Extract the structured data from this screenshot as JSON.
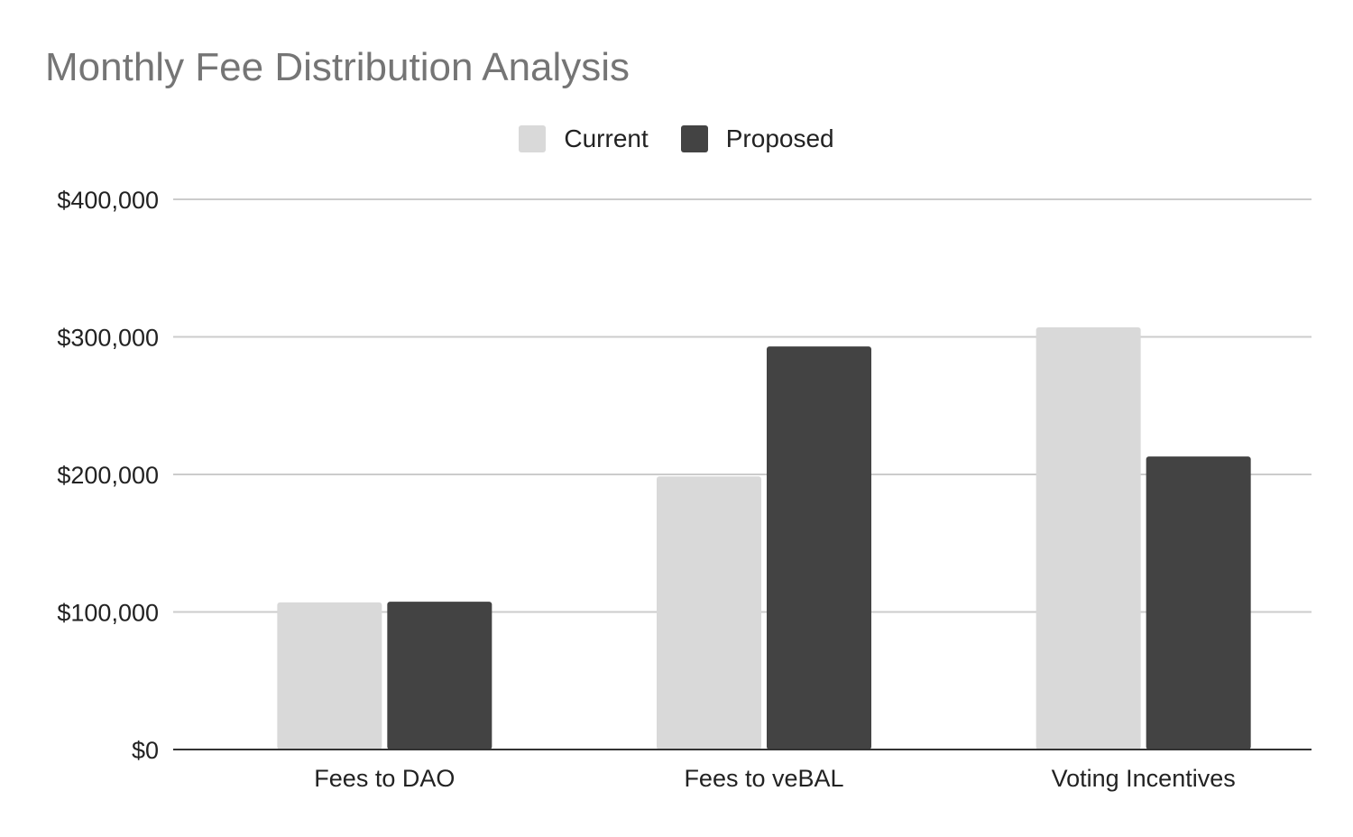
{
  "chart_data": {
    "type": "bar",
    "title": "Monthly Fee Distribution Analysis",
    "categories": [
      "Fees to DAO",
      "Fees to veBAL",
      "Voting Incentives"
    ],
    "series": [
      {
        "name": "Current",
        "color": "#d9d9d9",
        "values": [
          107000,
          198500,
          307000
        ]
      },
      {
        "name": "Proposed",
        "color": "#434343",
        "values": [
          107500,
          293000,
          213000
        ]
      }
    ],
    "xlabel": "",
    "ylabel": "",
    "ylim": [
      0,
      400000
    ],
    "yticks": [
      0,
      100000,
      200000,
      300000,
      400000
    ],
    "ytick_labels": [
      "$0",
      "$100,000",
      "$200,000",
      "$300,000",
      "$400,000"
    ],
    "grid": true,
    "legend_position": "top-center"
  }
}
